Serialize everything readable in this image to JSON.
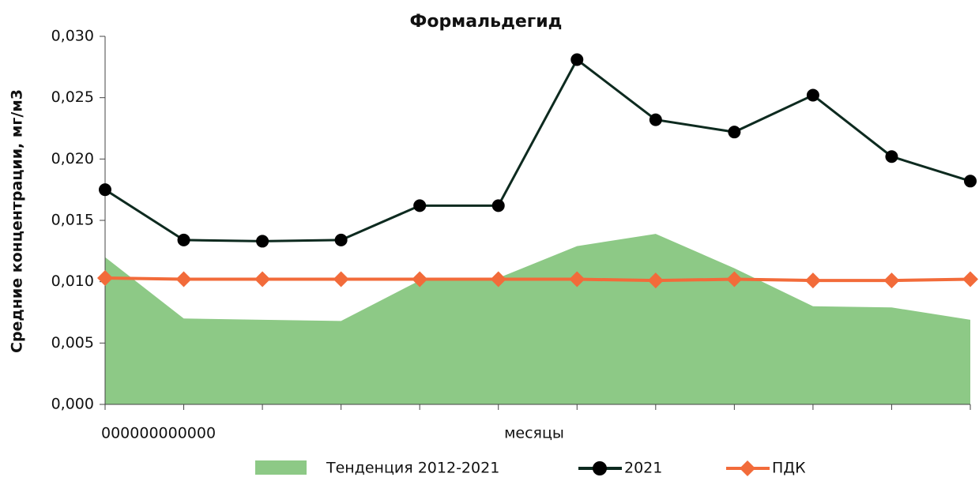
{
  "chart_data": {
    "type": "line",
    "title": "Формальдегид",
    "y_label": "Средние концентрации, мг/м3",
    "x_label": "месяцы",
    "x_annotation": "000000000000",
    "categories": [
      null,
      null,
      null,
      null,
      null,
      null,
      null,
      null,
      null,
      null,
      null,
      null
    ],
    "series": [
      {
        "name": "Тенденция 2012-2021",
        "kind": "area",
        "color": "#8dc986",
        "values": [
          0.012,
          0.007,
          0.0069,
          0.0068,
          0.0101,
          0.0103,
          0.0129,
          0.0139,
          0.0111,
          0.008,
          0.0079,
          0.0069
        ]
      },
      {
        "name": "2021",
        "kind": "line",
        "color": "#000000",
        "line_color": "#0d2a1f",
        "values": [
          0.0175,
          0.0134,
          0.0133,
          0.0134,
          0.0162,
          0.0162,
          0.0281,
          0.0232,
          0.0222,
          0.0252,
          0.0202,
          0.0182
        ]
      },
      {
        "name": "ПДК",
        "kind": "line",
        "color": "#f26b3a",
        "values": [
          0.0103,
          0.0102,
          0.0102,
          0.0102,
          0.0102,
          0.0102,
          0.0102,
          0.0101,
          0.0102,
          0.0101,
          0.0101,
          0.0102
        ]
      }
    ],
    "ylim": [
      0,
      0.03
    ],
    "yticks": [
      {
        "value": 0,
        "label": "0,000"
      },
      {
        "value": 0.005,
        "label": "0,005"
      },
      {
        "value": 0.01,
        "label": "0,010"
      },
      {
        "value": 0.015,
        "label": "0,015"
      },
      {
        "value": 0.02,
        "label": "0,020"
      },
      {
        "value": 0.025,
        "label": "0,025"
      },
      {
        "value": 0.03,
        "label": "0,030"
      }
    ],
    "grid": false,
    "legend": "bottom"
  }
}
